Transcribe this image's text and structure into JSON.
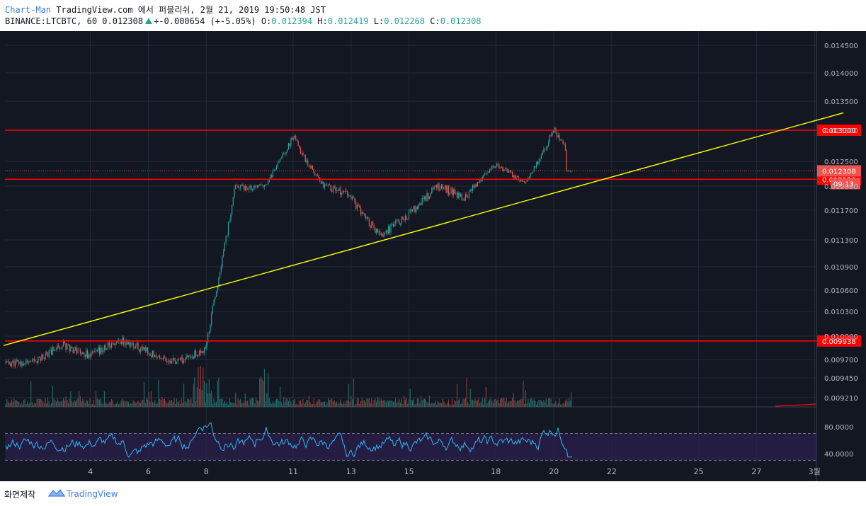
{
  "header": {
    "author": "Chart-Man",
    "published": "TradingView.com 에서 퍼블리쉬, 2월 21, 2019 19:50:48 JST",
    "symbol": "BINANCE:LTCBTC, 60",
    "last": "0.012308",
    "change": "+-0.000654 (+-5.05%)",
    "o_label": "O:",
    "o_value": "0.012394",
    "h_label": "H:",
    "h_value": "0.012419",
    "l_label": "L:",
    "l_value": "0.012268",
    "c_label": "C:",
    "c_value": "0.012308"
  },
  "footer": {
    "label": "화면제작",
    "logo_text": "TradingView"
  },
  "colors": {
    "up": "#26a69a",
    "down": "#ef5350",
    "bg": "#131722",
    "level": "#ff0000",
    "trendline": "#ffff00",
    "rsi": "#29b6f6",
    "rsi_band": "#2a1f4a",
    "last_price_label": "#ef5350"
  },
  "chart_data": {
    "type": "candlestick",
    "symbol": "BINANCE:LTCBTC",
    "interval": "60",
    "y_ticks": [
      "0.014500",
      "0.014000",
      "0.013500",
      "0.013000",
      "0.012500",
      "0.012000",
      "0.011700",
      "0.011300",
      "0.010900",
      "0.010600",
      "0.010300",
      "0.010000",
      "0.009700",
      "0.009450",
      "0.009210"
    ],
    "x_ticks": [
      "4",
      "6",
      "8",
      "11",
      "13",
      "15",
      "18",
      "20",
      "22",
      "25",
      "27",
      "3월"
    ],
    "ohlc_keypoints": [
      {
        "date": "2019-02-02",
        "close": 0.00965
      },
      {
        "date": "2019-02-03",
        "close": 0.0099
      },
      {
        "date": "2019-02-04",
        "close": 0.00975
      },
      {
        "date": "2019-02-05",
        "close": 0.00995
      },
      {
        "date": "2019-02-06",
        "close": 0.0098
      },
      {
        "date": "2019-02-07",
        "close": 0.00965
      },
      {
        "date": "2019-02-08",
        "close": 0.00985
      },
      {
        "date": "2019-02-09",
        "close": 0.012
      },
      {
        "date": "2019-02-10",
        "close": 0.012
      },
      {
        "date": "2019-02-11",
        "close": 0.0129
      },
      {
        "date": "2019-02-12",
        "close": 0.01205
      },
      {
        "date": "2019-02-13",
        "close": 0.01185
      },
      {
        "date": "2019-02-14",
        "close": 0.01135
      },
      {
        "date": "2019-02-15",
        "close": 0.01165
      },
      {
        "date": "2019-02-16",
        "close": 0.012
      },
      {
        "date": "2019-02-17",
        "close": 0.01185
      },
      {
        "date": "2019-02-18",
        "close": 0.01245
      },
      {
        "date": "2019-02-19",
        "close": 0.01205
      },
      {
        "date": "2019-02-20",
        "close": 0.013
      },
      {
        "date": "2019-02-21",
        "close": 0.012308
      }
    ],
    "horizontal_levels": [
      {
        "value": 0.013,
        "label": "0.013000"
      },
      {
        "value": 0.012139,
        "label": "0.012139"
      },
      {
        "value": 0.009938,
        "label": "0.009938"
      }
    ],
    "last_price": {
      "value": 0.012308,
      "label": "0.012308",
      "countdown": "09:13"
    },
    "trendline": {
      "from": {
        "date": "2019-02-01",
        "value": 0.00988
      },
      "to": {
        "date": "2019-03-02",
        "value": 0.0133
      }
    },
    "volume": {
      "visible": true
    },
    "rsi": {
      "y_ticks": [
        "80.0000",
        "40.0000"
      ],
      "upper": 70,
      "lower": 30,
      "last": 35
    },
    "grid": true
  }
}
